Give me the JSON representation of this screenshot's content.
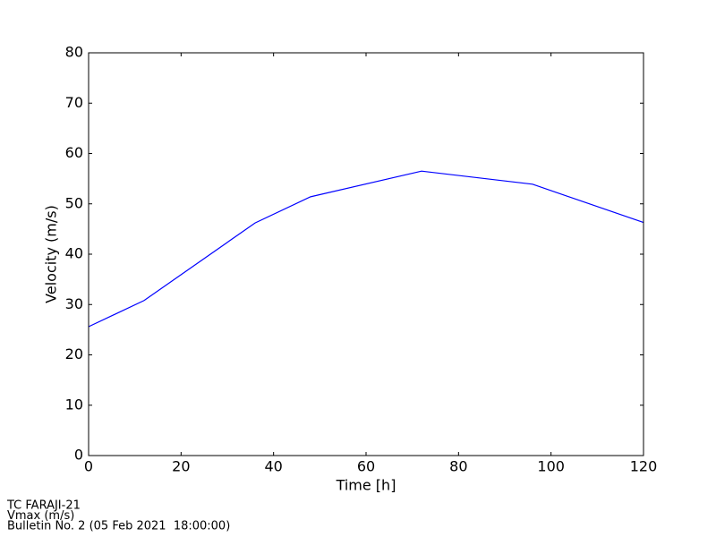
{
  "chart_data": {
    "type": "line",
    "x_label": "Time [h]",
    "y_label": "Velocity (m/s)",
    "x": [
      0,
      12,
      36,
      48,
      72,
      96,
      120
    ],
    "series": [
      {
        "color": "#0000ff",
        "values": [
          25.6,
          30.8,
          46.2,
          51.4,
          56.5,
          53.9,
          46.3
        ]
      }
    ],
    "xlim": [
      0,
      120
    ],
    "xticks": [
      0,
      20,
      40,
      60,
      80,
      100,
      120
    ],
    "ylim": [
      0,
      80
    ],
    "yticks": [
      0,
      10,
      20,
      30,
      40,
      50,
      60,
      70,
      80
    ],
    "grid": false,
    "annotations": [
      "TC FARAJI-21",
      "Vmax (m/s)",
      "Bulletin No. 2 (05 Feb 2021  18:00:00)"
    ]
  }
}
